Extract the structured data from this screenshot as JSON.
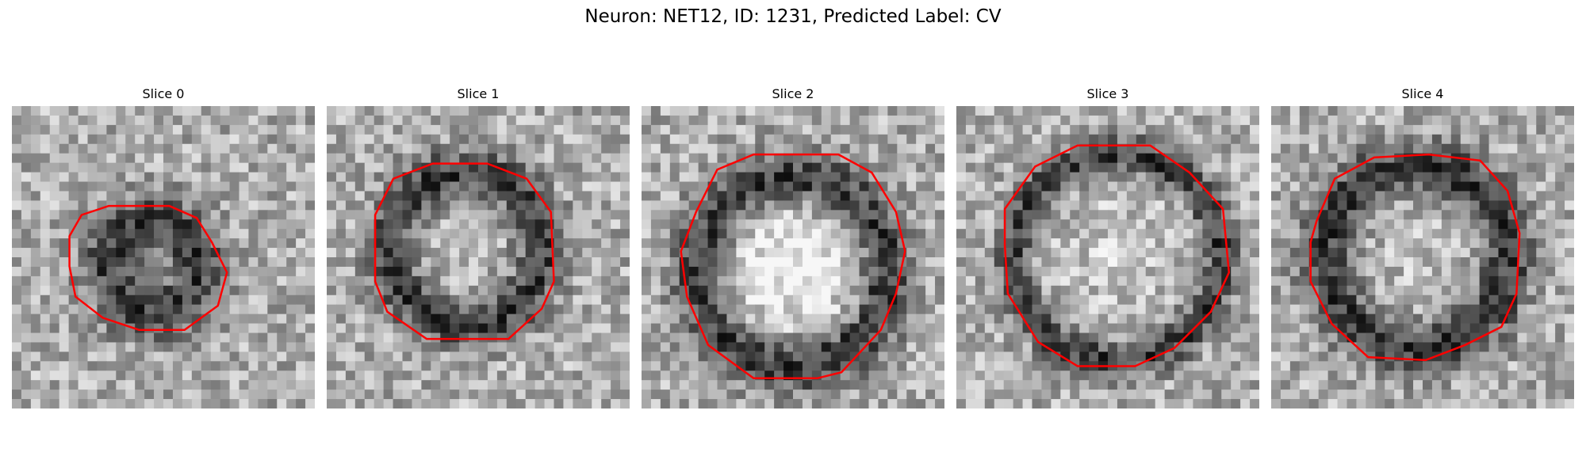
{
  "figure": {
    "title": "Neuron: NET12, ID: 1231, Predicted Label: CV"
  },
  "panels": [
    {
      "title": "Slice 0",
      "contour_color": "#ff0000",
      "contour": [
        [
          0.19,
          0.43
        ],
        [
          0.23,
          0.36
        ],
        [
          0.32,
          0.33
        ],
        [
          0.52,
          0.33
        ],
        [
          0.61,
          0.37
        ],
        [
          0.66,
          0.45
        ],
        [
          0.71,
          0.55
        ],
        [
          0.68,
          0.66
        ],
        [
          0.57,
          0.74
        ],
        [
          0.42,
          0.74
        ],
        [
          0.3,
          0.7
        ],
        [
          0.21,
          0.63
        ],
        [
          0.19,
          0.53
        ]
      ]
    },
    {
      "title": "Slice 1",
      "contour_color": "#ff0000",
      "contour": [
        [
          0.16,
          0.36
        ],
        [
          0.22,
          0.24
        ],
        [
          0.35,
          0.19
        ],
        [
          0.53,
          0.19
        ],
        [
          0.66,
          0.24
        ],
        [
          0.74,
          0.35
        ],
        [
          0.75,
          0.58
        ],
        [
          0.71,
          0.67
        ],
        [
          0.6,
          0.77
        ],
        [
          0.33,
          0.77
        ],
        [
          0.2,
          0.68
        ],
        [
          0.16,
          0.58
        ]
      ]
    },
    {
      "title": "Slice 2",
      "contour_color": "#ff0000",
      "contour": [
        [
          0.18,
          0.35
        ],
        [
          0.25,
          0.21
        ],
        [
          0.37,
          0.16
        ],
        [
          0.65,
          0.16
        ],
        [
          0.76,
          0.22
        ],
        [
          0.84,
          0.35
        ],
        [
          0.87,
          0.48
        ],
        [
          0.84,
          0.62
        ],
        [
          0.79,
          0.74
        ],
        [
          0.66,
          0.88
        ],
        [
          0.58,
          0.9
        ],
        [
          0.37,
          0.9
        ],
        [
          0.22,
          0.79
        ],
        [
          0.15,
          0.63
        ],
        [
          0.13,
          0.48
        ]
      ]
    },
    {
      "title": "Slice 3",
      "contour_color": "#ff0000",
      "contour": [
        [
          0.16,
          0.34
        ],
        [
          0.26,
          0.2
        ],
        [
          0.4,
          0.13
        ],
        [
          0.64,
          0.13
        ],
        [
          0.77,
          0.22
        ],
        [
          0.88,
          0.34
        ],
        [
          0.9,
          0.55
        ],
        [
          0.84,
          0.68
        ],
        [
          0.72,
          0.8
        ],
        [
          0.59,
          0.86
        ],
        [
          0.4,
          0.86
        ],
        [
          0.27,
          0.78
        ],
        [
          0.17,
          0.62
        ],
        [
          0.16,
          0.46
        ]
      ]
    },
    {
      "title": "Slice 4",
      "contour_color": "#ff0000",
      "contour": [
        [
          0.15,
          0.38
        ],
        [
          0.21,
          0.24
        ],
        [
          0.34,
          0.17
        ],
        [
          0.52,
          0.16
        ],
        [
          0.69,
          0.18
        ],
        [
          0.78,
          0.28
        ],
        [
          0.82,
          0.42
        ],
        [
          0.81,
          0.62
        ],
        [
          0.76,
          0.73
        ],
        [
          0.64,
          0.79
        ],
        [
          0.51,
          0.84
        ],
        [
          0.32,
          0.83
        ],
        [
          0.2,
          0.72
        ],
        [
          0.13,
          0.58
        ],
        [
          0.13,
          0.45
        ]
      ]
    }
  ]
}
